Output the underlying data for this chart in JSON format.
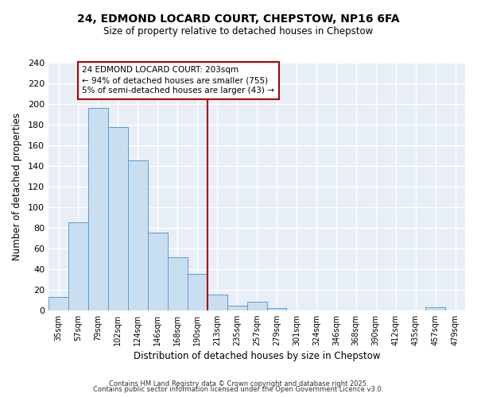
{
  "title": "24, EDMOND LOCARD COURT, CHEPSTOW, NP16 6FA",
  "subtitle": "Size of property relative to detached houses in Chepstow",
  "xlabel": "Distribution of detached houses by size in Chepstow",
  "ylabel": "Number of detached properties",
  "bin_labels": [
    "35sqm",
    "57sqm",
    "79sqm",
    "102sqm",
    "124sqm",
    "146sqm",
    "168sqm",
    "190sqm",
    "213sqm",
    "235sqm",
    "257sqm",
    "279sqm",
    "301sqm",
    "324sqm",
    "346sqm",
    "368sqm",
    "390sqm",
    "412sqm",
    "435sqm",
    "457sqm",
    "479sqm"
  ],
  "bar_values": [
    13,
    85,
    196,
    178,
    145,
    75,
    51,
    35,
    15,
    4,
    8,
    2,
    0,
    0,
    0,
    0,
    0,
    0,
    0,
    3,
    0
  ],
  "bar_color": "#c9dff0",
  "bar_edge_color": "#5b9bd5",
  "bg_color": "#e8eef5",
  "grid_color": "#ffffff",
  "vline_color": "#aa0000",
  "annotation_text": "24 EDMOND LOCARD COURT: 203sqm\n← 94% of detached houses are smaller (755)\n5% of semi-detached houses are larger (43) →",
  "annotation_box_edge": "#aa0000",
  "footer_lines": [
    "Contains HM Land Registry data © Crown copyright and database right 2025.",
    "Contains public sector information licensed under the Open Government Licence v3.0."
  ],
  "ylim": [
    0,
    240
  ],
  "yticks": [
    0,
    20,
    40,
    60,
    80,
    100,
    120,
    140,
    160,
    180,
    200,
    220,
    240
  ],
  "vline_bin_index": 8
}
